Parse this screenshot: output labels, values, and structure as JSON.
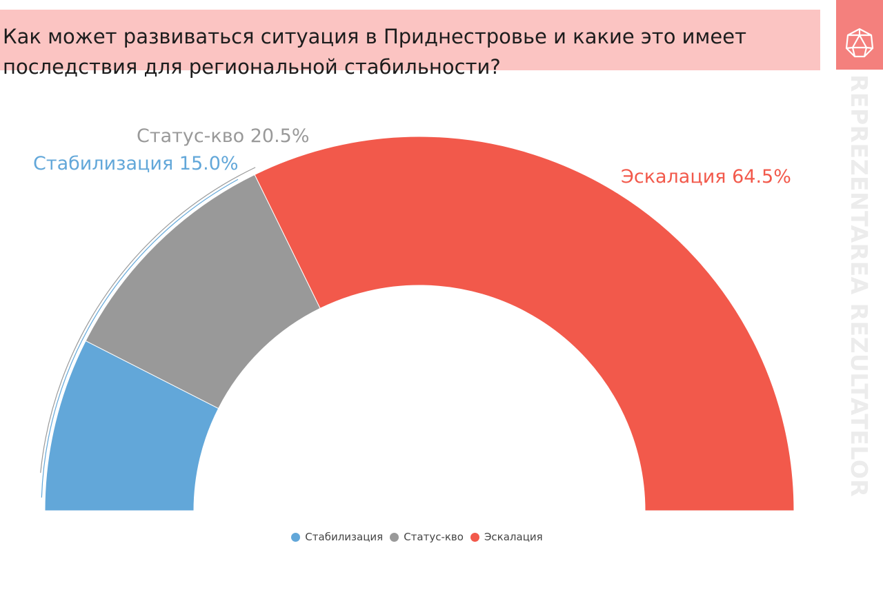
{
  "title": "Как может развиваться ситуация в Приднестровье и какие это имеет последствия для региональной стабильности?",
  "brand": {
    "text": "REPREZENTAREA REZULTATELOR",
    "logo_icon": "dodecahedron-icon",
    "box_color": "#f4807d"
  },
  "chart_data": {
    "type": "pie",
    "shape": "semi-donut",
    "title": "Как может развиваться ситуация в Приднестровье и какие это имеет последствия для региональной стабильности?",
    "categories": [
      "Стабилизация",
      "Статус-кво",
      "Эскалация"
    ],
    "values": [
      15.0,
      20.5,
      64.5
    ],
    "unit": "%",
    "colors": [
      "#62a7d9",
      "#999999",
      "#f2594b"
    ],
    "data_labels": [
      "Стабилизация 15.0%",
      "Статус-кво 20.5%",
      "Эскалация 64.5%"
    ],
    "legend": {
      "position": "bottom",
      "items": [
        "Стабилизация",
        "Статус-кво",
        "Эскалация"
      ]
    }
  }
}
